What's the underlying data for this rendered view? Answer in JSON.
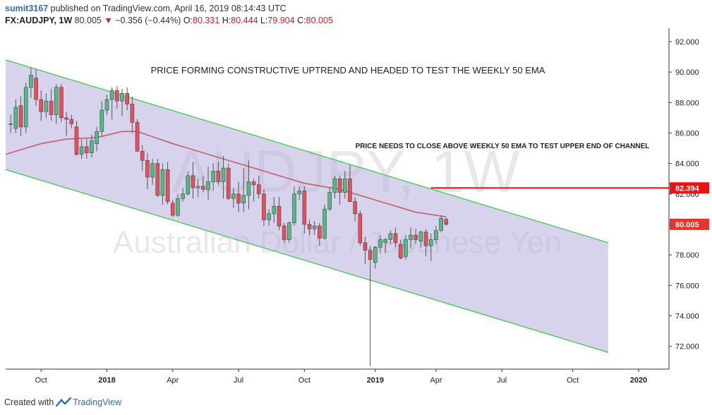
{
  "header": {
    "user": "sumit3167",
    "published_text": "published on TradingView.com, April 16, 2019 08:14:43 UTC",
    "symbol": "FX:AUDJPY, 1W",
    "last": "80.005",
    "change_arrow": "▼",
    "change": "−0.356 (−0.44%)",
    "o_label": "O:",
    "o_value": "80.331",
    "h_label": "H:",
    "h_value": "80.444",
    "l_label": "L:",
    "l_value": "79.904",
    "c_label": "C:",
    "c_value": "80.005"
  },
  "footer": {
    "prefix": "Created with",
    "brand": "TradingView",
    "icon": "tradingview-logo-icon"
  },
  "colors": {
    "up": "#53b987",
    "down": "#eb4d5c",
    "ema": "#c0626a",
    "channel_fill": "#b7aedd",
    "channel_line": "#2ecc40",
    "hline": "#ee1111",
    "text": "#222222",
    "axis": "#333333",
    "price_tag": "#e8322c",
    "watermark": "#e8e8e8"
  },
  "chart_data": {
    "type": "candlestick",
    "title": "",
    "annotations": [
      "PRICE FORMING CONSTRUCTIVE UPTREND AND HEADED TO TEST THE WEEKLY 50 EMA",
      "PRICE NEEDS TO CLOSE ABOVE WEEKLY 50 EMA TO TEST UPPER END OF CHANNEL"
    ],
    "watermark": {
      "line1": "AUDJPY, 1W",
      "line2": "Australian Dollar / Japanese Yen"
    },
    "xlabel": "",
    "ylabel": "",
    "grid": false,
    "y_axis": {
      "position": "right",
      "ylim": [
        70.5,
        92.6
      ],
      "ticks": [
        72,
        74,
        76,
        78,
        80,
        82,
        84,
        86,
        88,
        90,
        92
      ],
      "tick_labels": [
        "72.000",
        "74.000",
        "76.000",
        "78.000",
        "80.000",
        "82.000",
        "84.000",
        "86.000",
        "88.000",
        "90.000",
        "92.000"
      ]
    },
    "x_axis": {
      "start_date": "2017-08-14",
      "end_date": "2020-02-17",
      "ticks": [
        {
          "date": "2017-10-02",
          "label": "Oct",
          "bold": false
        },
        {
          "date": "2018-01-01",
          "label": "2018",
          "bold": true
        },
        {
          "date": "2018-04-02",
          "label": "Apr",
          "bold": false
        },
        {
          "date": "2018-07-02",
          "label": "Jul",
          "bold": false
        },
        {
          "date": "2018-10-01",
          "label": "Oct",
          "bold": false
        },
        {
          "date": "2019-01-07",
          "label": "2019",
          "bold": true
        },
        {
          "date": "2019-04-01",
          "label": "Apr",
          "bold": false
        },
        {
          "date": "2019-07-01",
          "label": "Jul",
          "bold": false
        },
        {
          "date": "2019-10-07",
          "label": "Oct",
          "bold": false
        },
        {
          "date": "2020-01-06",
          "label": "2020",
          "bold": true
        }
      ]
    },
    "candles": [
      {
        "date": "2017-08-21",
        "o": 86.6,
        "h": 87.2,
        "l": 86.0,
        "c": 86.6
      },
      {
        "date": "2017-08-28",
        "o": 86.3,
        "h": 88.2,
        "l": 86.0,
        "c": 87.7
      },
      {
        "date": "2017-09-04",
        "o": 87.8,
        "h": 88.4,
        "l": 85.8,
        "c": 86.4
      },
      {
        "date": "2017-09-11",
        "o": 86.4,
        "h": 89.3,
        "l": 86.0,
        "c": 89.0
      },
      {
        "date": "2017-09-18",
        "o": 89.0,
        "h": 90.3,
        "l": 88.3,
        "c": 89.8
      },
      {
        "date": "2017-09-25",
        "o": 89.6,
        "h": 90.2,
        "l": 87.8,
        "c": 88.2
      },
      {
        "date": "2017-10-02",
        "o": 88.2,
        "h": 88.8,
        "l": 86.8,
        "c": 87.4
      },
      {
        "date": "2017-10-09",
        "o": 87.4,
        "h": 88.6,
        "l": 87.0,
        "c": 88.1
      },
      {
        "date": "2017-10-16",
        "o": 88.1,
        "h": 88.9,
        "l": 86.8,
        "c": 87.2
      },
      {
        "date": "2017-10-23",
        "o": 87.2,
        "h": 89.2,
        "l": 86.6,
        "c": 89.0
      },
      {
        "date": "2017-10-30",
        "o": 89.0,
        "h": 89.2,
        "l": 86.7,
        "c": 87.0
      },
      {
        "date": "2017-11-06",
        "o": 87.0,
        "h": 87.4,
        "l": 85.8,
        "c": 86.9
      },
      {
        "date": "2017-11-13",
        "o": 86.9,
        "h": 87.2,
        "l": 86.3,
        "c": 86.6
      },
      {
        "date": "2017-11-20",
        "o": 86.4,
        "h": 86.8,
        "l": 84.5,
        "c": 84.6
      },
      {
        "date": "2017-11-27",
        "o": 84.6,
        "h": 85.6,
        "l": 84.3,
        "c": 85.1
      },
      {
        "date": "2017-12-04",
        "o": 85.1,
        "h": 85.6,
        "l": 84.3,
        "c": 84.7
      },
      {
        "date": "2017-12-11",
        "o": 84.7,
        "h": 85.9,
        "l": 84.4,
        "c": 85.5
      },
      {
        "date": "2017-12-18",
        "o": 85.3,
        "h": 86.4,
        "l": 84.8,
        "c": 86.1
      },
      {
        "date": "2017-12-25",
        "o": 86.1,
        "h": 88.1,
        "l": 85.8,
        "c": 87.5
      },
      {
        "date": "2018-01-01",
        "o": 87.5,
        "h": 88.5,
        "l": 87.2,
        "c": 88.2
      },
      {
        "date": "2018-01-08",
        "o": 88.2,
        "h": 89.0,
        "l": 86.9,
        "c": 88.8
      },
      {
        "date": "2018-01-15",
        "o": 88.8,
        "h": 89.1,
        "l": 87.6,
        "c": 88.1
      },
      {
        "date": "2018-01-22",
        "o": 88.1,
        "h": 88.9,
        "l": 87.1,
        "c": 88.6
      },
      {
        "date": "2018-01-29",
        "o": 88.6,
        "h": 89.0,
        "l": 87.5,
        "c": 87.9
      },
      {
        "date": "2018-02-05",
        "o": 87.9,
        "h": 88.4,
        "l": 86.0,
        "c": 86.7
      },
      {
        "date": "2018-02-12",
        "o": 86.7,
        "h": 86.9,
        "l": 84.8,
        "c": 84.8
      },
      {
        "date": "2018-02-19",
        "o": 84.8,
        "h": 85.2,
        "l": 83.5,
        "c": 84.2
      },
      {
        "date": "2018-02-26",
        "o": 84.2,
        "h": 84.7,
        "l": 82.3,
        "c": 83.1
      },
      {
        "date": "2018-03-05",
        "o": 83.1,
        "h": 84.3,
        "l": 82.6,
        "c": 84.0
      },
      {
        "date": "2018-03-12",
        "o": 84.0,
        "h": 84.3,
        "l": 81.8,
        "c": 81.9
      },
      {
        "date": "2018-03-19",
        "o": 81.9,
        "h": 84.0,
        "l": 81.3,
        "c": 83.6
      },
      {
        "date": "2018-03-26",
        "o": 83.6,
        "h": 84.1,
        "l": 81.3,
        "c": 81.5
      },
      {
        "date": "2018-04-02",
        "o": 81.4,
        "h": 81.6,
        "l": 80.5,
        "c": 80.6
      },
      {
        "date": "2018-04-09",
        "o": 80.6,
        "h": 82.0,
        "l": 80.5,
        "c": 81.7
      },
      {
        "date": "2018-04-16",
        "o": 81.7,
        "h": 82.4,
        "l": 81.5,
        "c": 82.0
      },
      {
        "date": "2018-04-23",
        "o": 82.0,
        "h": 83.5,
        "l": 81.9,
        "c": 83.2
      },
      {
        "date": "2018-04-30",
        "o": 83.2,
        "h": 84.1,
        "l": 81.7,
        "c": 82.4
      },
      {
        "date": "2018-05-07",
        "o": 82.4,
        "h": 83.0,
        "l": 81.8,
        "c": 82.5
      },
      {
        "date": "2018-05-14",
        "o": 82.5,
        "h": 83.2,
        "l": 82.1,
        "c": 82.3
      },
      {
        "date": "2018-05-21",
        "o": 82.3,
        "h": 83.8,
        "l": 81.6,
        "c": 82.8
      },
      {
        "date": "2018-05-28",
        "o": 82.8,
        "h": 84.0,
        "l": 82.2,
        "c": 83.5
      },
      {
        "date": "2018-06-04",
        "o": 83.5,
        "h": 84.1,
        "l": 82.6,
        "c": 82.8
      },
      {
        "date": "2018-06-11",
        "o": 82.8,
        "h": 84.5,
        "l": 81.7,
        "c": 83.7
      },
      {
        "date": "2018-06-18",
        "o": 83.7,
        "h": 84.0,
        "l": 81.6,
        "c": 81.7
      },
      {
        "date": "2018-06-25",
        "o": 81.7,
        "h": 82.4,
        "l": 81.1,
        "c": 82.0
      },
      {
        "date": "2018-07-02",
        "o": 82.0,
        "h": 82.8,
        "l": 80.8,
        "c": 81.4
      },
      {
        "date": "2018-07-09",
        "o": 81.4,
        "h": 83.7,
        "l": 80.8,
        "c": 81.9
      },
      {
        "date": "2018-07-16",
        "o": 81.9,
        "h": 84.2,
        "l": 81.0,
        "c": 82.8
      },
      {
        "date": "2018-07-23",
        "o": 82.8,
        "h": 83.0,
        "l": 81.5,
        "c": 82.6
      },
      {
        "date": "2018-07-30",
        "o": 82.6,
        "h": 83.2,
        "l": 81.7,
        "c": 82.0
      },
      {
        "date": "2018-08-06",
        "o": 82.0,
        "h": 82.3,
        "l": 79.9,
        "c": 80.3
      },
      {
        "date": "2018-08-13",
        "o": 80.3,
        "h": 81.0,
        "l": 79.9,
        "c": 80.7
      },
      {
        "date": "2018-08-20",
        "o": 80.7,
        "h": 81.8,
        "l": 80.1,
        "c": 81.2
      },
      {
        "date": "2018-08-27",
        "o": 81.2,
        "h": 81.8,
        "l": 79.6,
        "c": 79.9
      },
      {
        "date": "2018-09-03",
        "o": 79.9,
        "h": 80.1,
        "l": 78.8,
        "c": 79.0
      },
      {
        "date": "2018-09-10",
        "o": 79.0,
        "h": 80.2,
        "l": 78.8,
        "c": 80.1
      },
      {
        "date": "2018-09-17",
        "o": 80.1,
        "h": 82.5,
        "l": 79.9,
        "c": 82.0
      },
      {
        "date": "2018-09-24",
        "o": 82.0,
        "h": 82.5,
        "l": 81.6,
        "c": 82.2
      },
      {
        "date": "2018-10-01",
        "o": 82.2,
        "h": 82.5,
        "l": 79.4,
        "c": 80.0
      },
      {
        "date": "2018-10-08",
        "o": 80.0,
        "h": 80.3,
        "l": 79.3,
        "c": 79.7
      },
      {
        "date": "2018-10-15",
        "o": 79.7,
        "h": 80.2,
        "l": 79.3,
        "c": 79.9
      },
      {
        "date": "2018-10-22",
        "o": 79.9,
        "h": 80.1,
        "l": 78.6,
        "c": 79.1
      },
      {
        "date": "2018-10-29",
        "o": 79.1,
        "h": 81.3,
        "l": 79.0,
        "c": 81.0
      },
      {
        "date": "2018-11-05",
        "o": 81.0,
        "h": 82.4,
        "l": 80.9,
        "c": 82.1
      },
      {
        "date": "2018-11-12",
        "o": 82.1,
        "h": 83.2,
        "l": 81.7,
        "c": 83.0
      },
      {
        "date": "2018-11-19",
        "o": 83.0,
        "h": 83.2,
        "l": 81.3,
        "c": 82.1
      },
      {
        "date": "2018-11-26",
        "o": 82.1,
        "h": 83.5,
        "l": 81.7,
        "c": 83.0
      },
      {
        "date": "2018-12-03",
        "o": 83.0,
        "h": 83.9,
        "l": 81.6,
        "c": 81.5
      },
      {
        "date": "2018-12-10",
        "o": 81.5,
        "h": 81.8,
        "l": 80.2,
        "c": 80.7
      },
      {
        "date": "2018-12-17",
        "o": 80.7,
        "h": 80.9,
        "l": 78.6,
        "c": 78.8
      },
      {
        "date": "2018-12-24",
        "o": 78.8,
        "h": 79.2,
        "l": 77.4,
        "c": 78.3
      },
      {
        "date": "2018-12-31",
        "o": 78.3,
        "h": 78.6,
        "l": 70.7,
        "c": 77.7
      },
      {
        "date": "2019-01-07",
        "o": 77.5,
        "h": 78.6,
        "l": 77.1,
        "c": 78.5
      },
      {
        "date": "2019-01-14",
        "o": 78.5,
        "h": 79.3,
        "l": 78.1,
        "c": 79.0
      },
      {
        "date": "2019-01-21",
        "o": 78.8,
        "h": 79.1,
        "l": 78.1,
        "c": 79.0
      },
      {
        "date": "2019-01-28",
        "o": 79.0,
        "h": 79.6,
        "l": 78.7,
        "c": 79.4
      },
      {
        "date": "2019-02-04",
        "o": 79.4,
        "h": 79.8,
        "l": 78.5,
        "c": 78.8
      },
      {
        "date": "2019-02-11",
        "o": 78.7,
        "h": 79.0,
        "l": 77.7,
        "c": 77.8
      },
      {
        "date": "2019-02-18",
        "o": 77.9,
        "h": 79.3,
        "l": 77.7,
        "c": 79.0
      },
      {
        "date": "2019-02-25",
        "o": 79.0,
        "h": 79.8,
        "l": 78.4,
        "c": 79.3
      },
      {
        "date": "2019-03-04",
        "o": 79.3,
        "h": 79.7,
        "l": 78.7,
        "c": 79.0
      },
      {
        "date": "2019-03-11",
        "o": 78.9,
        "h": 79.6,
        "l": 78.5,
        "c": 79.5
      },
      {
        "date": "2019-03-18",
        "o": 79.5,
        "h": 79.7,
        "l": 77.9,
        "c": 78.6
      },
      {
        "date": "2019-03-25",
        "o": 78.6,
        "h": 79.4,
        "l": 77.6,
        "c": 79.0
      },
      {
        "date": "2019-04-01",
        "o": 79.0,
        "h": 79.9,
        "l": 78.7,
        "c": 79.6
      },
      {
        "date": "2019-04-08",
        "o": 79.6,
        "h": 80.6,
        "l": 79.5,
        "c": 80.4
      },
      {
        "date": "2019-04-15",
        "o": 80.331,
        "h": 80.444,
        "l": 79.904,
        "c": 80.005
      }
    ],
    "ema": {
      "name": "",
      "points": [
        {
          "date": "2017-08-14",
          "value": 84.6
        },
        {
          "date": "2017-10-02",
          "value": 85.3
        },
        {
          "date": "2017-11-06",
          "value": 85.6
        },
        {
          "date": "2017-12-18",
          "value": 85.7
        },
        {
          "date": "2018-01-22",
          "value": 86.1
        },
        {
          "date": "2018-02-12",
          "value": 86.1
        },
        {
          "date": "2018-04-02",
          "value": 85.3
        },
        {
          "date": "2018-06-04",
          "value": 84.4
        },
        {
          "date": "2018-08-06",
          "value": 83.5
        },
        {
          "date": "2018-10-01",
          "value": 82.7
        },
        {
          "date": "2018-11-19",
          "value": 82.3
        },
        {
          "date": "2019-01-07",
          "value": 81.6
        },
        {
          "date": "2019-03-04",
          "value": 80.8
        },
        {
          "date": "2019-04-15",
          "value": 80.5
        }
      ]
    },
    "channel": {
      "upper": [
        {
          "date": "2017-08-14",
          "value": 90.8
        },
        {
          "date": "2019-11-25",
          "value": 78.8
        }
      ],
      "lower": [
        {
          "date": "2017-08-14",
          "value": 83.6
        },
        {
          "date": "2019-11-25",
          "value": 71.6
        }
      ]
    },
    "horizontal_line": {
      "start_date": "2019-03-25",
      "value": 82.394,
      "label": "82.394"
    },
    "last_price_label": "80.005"
  }
}
